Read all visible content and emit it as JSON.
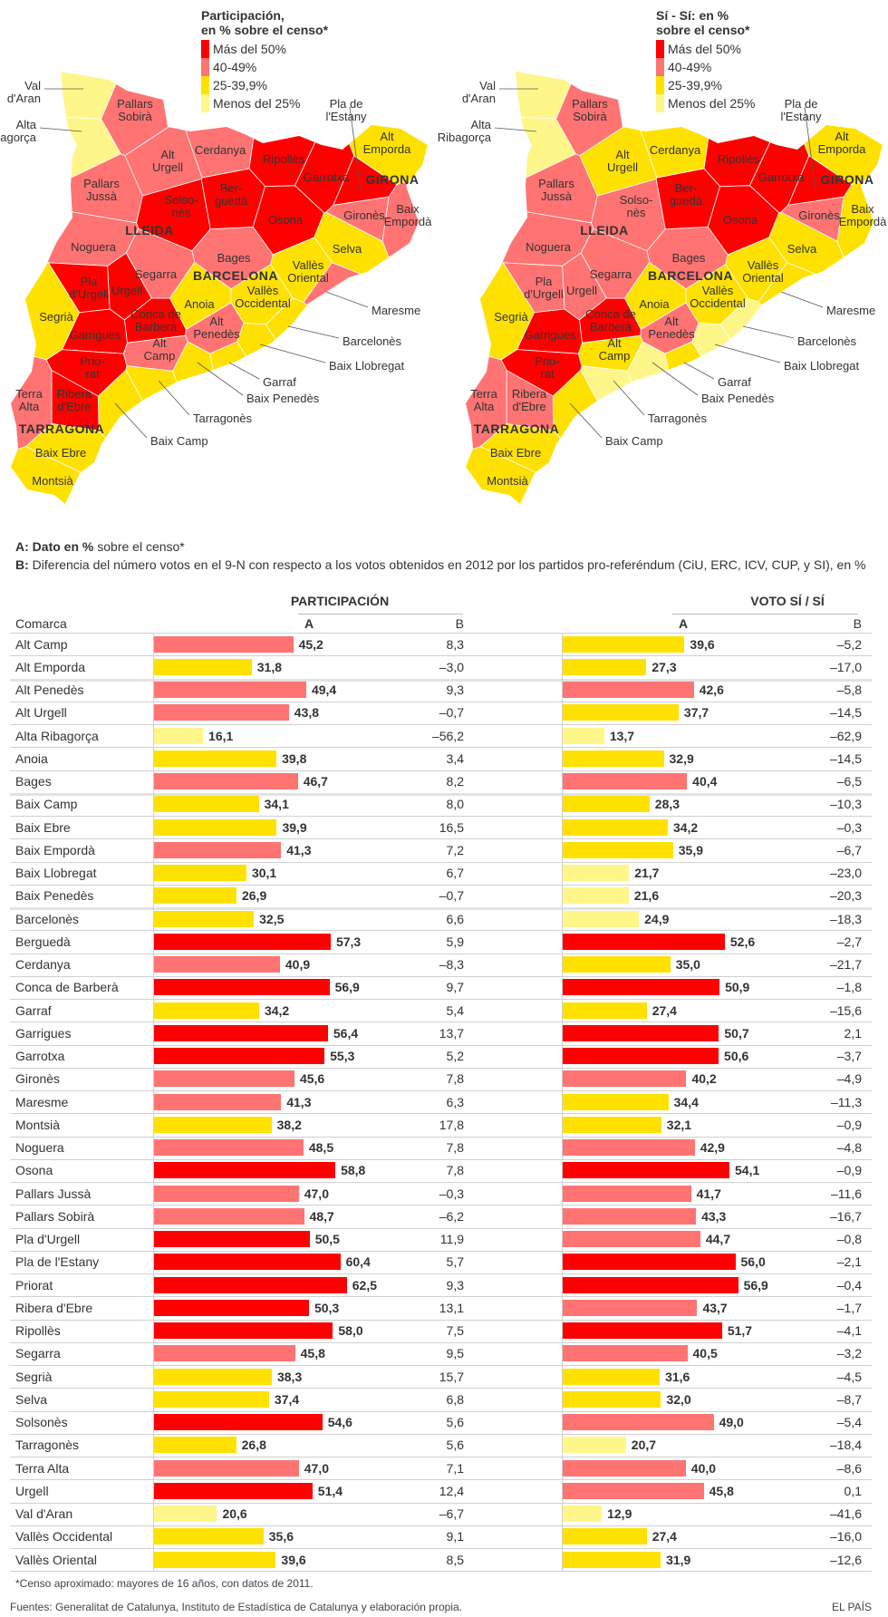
{
  "colors": {
    "more_50": "#ff0000",
    "from_40_49": "#ff7373",
    "from_25_39": "#ffe100",
    "less_25": "#fff68a"
  },
  "legend_labels": [
    "Más del 50%",
    "40-49%",
    "25-39,9%",
    "Menos del 25%"
  ],
  "maps": [
    {
      "title_line1": "Participación,",
      "title_line2": "en % sobre el censo*",
      "value_field": "part_a"
    },
    {
      "title_line1": "Sí - Sí: en %",
      "title_line2": "sobre el censo*",
      "value_field": "si_a"
    }
  ],
  "provinces": [
    "LLEIDA",
    "GIRONA",
    "BARCELONA",
    "TARRAGONA"
  ],
  "notes": {
    "a_key": "A:",
    "a_bold": "Dato en %",
    "a_rest": " sobre el censo*",
    "b_key": "B:",
    "b_text": "Diferencia del número votos en el 9-N con respecto a los votos obtenidos en 2012 por los partidos pro-referéndum (CiU, ERC, ICV, CUP, y SI), en %"
  },
  "table": {
    "section_participacion": "PARTICIPACIÓN",
    "section_voto": "VOTO SÍ / SÍ",
    "col_comarca": "Comarca",
    "col_a": "A",
    "col_b": "B"
  },
  "chart_data": {
    "type": "bar",
    "series": [
      {
        "name": "PARTICIPACIÓN A",
        "field": "part_a"
      },
      {
        "name": "PARTICIPACIÓN B",
        "field": "part_b"
      },
      {
        "name": "VOTO SÍ / SÍ A",
        "field": "si_a"
      },
      {
        "name": "VOTO SÍ / SÍ B",
        "field": "si_b"
      }
    ],
    "color_thresholds": [
      50,
      40,
      25
    ],
    "rows": [
      {
        "name": "Alt Camp",
        "part_a": "45,2",
        "part_b": "8,3",
        "si_a": "39,6",
        "si_b": "–5,2"
      },
      {
        "name": "Alt Emporda",
        "part_a": "31,8",
        "part_b": "–3,0",
        "si_a": "27,3",
        "si_b": "–17,0"
      },
      {
        "name": "Alt Penedès",
        "part_a": "49,4",
        "part_b": "9,3",
        "si_a": "42,6",
        "si_b": "–5,8"
      },
      {
        "name": "Alt Urgell",
        "part_a": "43,8",
        "part_b": "–0,7",
        "si_a": "37,7",
        "si_b": "–14,5"
      },
      {
        "name": "Alta Ribagorça",
        "part_a": "16,1",
        "part_b": "–56,2",
        "si_a": "13,7",
        "si_b": "–62,9"
      },
      {
        "name": "Anoia",
        "part_a": "39,8",
        "part_b": "3,4",
        "si_a": "32,9",
        "si_b": "–14,5"
      },
      {
        "name": "Bages",
        "part_a": "46,7",
        "part_b": "8,2",
        "si_a": "40,4",
        "si_b": "–6,5"
      },
      {
        "name": "Baix Camp",
        "part_a": "34,1",
        "part_b": "8,0",
        "si_a": "28,3",
        "si_b": "–10,3"
      },
      {
        "name": "Baix Ebre",
        "part_a": "39,9",
        "part_b": "16,5",
        "si_a": "34,2",
        "si_b": "–0,3"
      },
      {
        "name": "Baix Empordà",
        "part_a": "41,3",
        "part_b": "7,2",
        "si_a": "35,9",
        "si_b": "–6,7"
      },
      {
        "name": "Baix Llobregat",
        "part_a": "30,1",
        "part_b": "6,7",
        "si_a": "21,7",
        "si_b": "–23,0"
      },
      {
        "name": "Baix Penedès",
        "part_a": "26,9",
        "part_b": "–0,7",
        "si_a": "21,6",
        "si_b": "–20,3"
      },
      {
        "name": "Barcelonès",
        "part_a": "32,5",
        "part_b": "6,6",
        "si_a": "24,9",
        "si_b": "–18,3"
      },
      {
        "name": "Berguedà",
        "part_a": "57,3",
        "part_b": "5,9",
        "si_a": "52,6",
        "si_b": "–2,7"
      },
      {
        "name": "Cerdanya",
        "part_a": "40,9",
        "part_b": "–8,3",
        "si_a": "35,0",
        "si_b": "–21,7"
      },
      {
        "name": "Conca de Barberà",
        "part_a": "56,9",
        "part_b": "9,7",
        "si_a": "50,9",
        "si_b": "–1,8"
      },
      {
        "name": "Garraf",
        "part_a": "34,2",
        "part_b": "5,4",
        "si_a": "27,4",
        "si_b": "–15,6"
      },
      {
        "name": "Garrigues",
        "part_a": "56,4",
        "part_b": "13,7",
        "si_a": "50,7",
        "si_b": "2,1"
      },
      {
        "name": "Garrotxa",
        "part_a": "55,3",
        "part_b": "5,2",
        "si_a": "50,6",
        "si_b": "–3,7"
      },
      {
        "name": "Gironès",
        "part_a": "45,6",
        "part_b": "7,8",
        "si_a": "40,2",
        "si_b": "–4,9"
      },
      {
        "name": "Maresme",
        "part_a": "41,3",
        "part_b": "6,3",
        "si_a": "34,4",
        "si_b": "–11,3"
      },
      {
        "name": "Montsià",
        "part_a": "38,2",
        "part_b": "17,8",
        "si_a": "32,1",
        "si_b": "–0,9"
      },
      {
        "name": "Noguera",
        "part_a": "48,5",
        "part_b": "7,8",
        "si_a": "42,9",
        "si_b": "–4,8"
      },
      {
        "name": "Osona",
        "part_a": "58,8",
        "part_b": "7,8",
        "si_a": "54,1",
        "si_b": "–0,9"
      },
      {
        "name": "Pallars Jussà",
        "part_a": "47,0",
        "part_b": "–0,3",
        "si_a": "41,7",
        "si_b": "–11,6"
      },
      {
        "name": "Pallars Sobirà",
        "part_a": "48,7",
        "part_b": "–6,2",
        "si_a": "43,3",
        "si_b": "–16,7"
      },
      {
        "name": "Pla d'Urgell",
        "part_a": "50,5",
        "part_b": "11,9",
        "si_a": "44,7",
        "si_b": "–0,8"
      },
      {
        "name": "Pla de l'Estany",
        "part_a": "60,4",
        "part_b": "5,7",
        "si_a": "56,0",
        "si_b": "–2,1"
      },
      {
        "name": "Priorat",
        "part_a": "62,5",
        "part_b": "9,3",
        "si_a": "56,9",
        "si_b": "–0,4"
      },
      {
        "name": "Ribera d'Ebre",
        "part_a": "50,3",
        "part_b": "13,1",
        "si_a": "43,7",
        "si_b": "–1,7"
      },
      {
        "name": "Ripollès",
        "part_a": "58,0",
        "part_b": "7,5",
        "si_a": "51,7",
        "si_b": "–4,1"
      },
      {
        "name": "Segarra",
        "part_a": "45,8",
        "part_b": "9,5",
        "si_a": "40,5",
        "si_b": "–3,2"
      },
      {
        "name": "Segrià",
        "part_a": "38,3",
        "part_b": "15,7",
        "si_a": "31,6",
        "si_b": "–4,5"
      },
      {
        "name": "Selva",
        "part_a": "37,4",
        "part_b": "6,8",
        "si_a": "32,0",
        "si_b": "–8,7"
      },
      {
        "name": "Solsonès",
        "part_a": "54,6",
        "part_b": "5,6",
        "si_a": "49,0",
        "si_b": "–5,4"
      },
      {
        "name": "Tarragonès",
        "part_a": "26,8",
        "part_b": "5,6",
        "si_a": "20,7",
        "si_b": "–18,4"
      },
      {
        "name": "Terra Alta",
        "part_a": "47,0",
        "part_b": "7,1",
        "si_a": "40,0",
        "si_b": "–8,6"
      },
      {
        "name": "Urgell",
        "part_a": "51,4",
        "part_b": "12,4",
        "si_a": "45,8",
        "si_b": "0,1"
      },
      {
        "name": "Val d'Aran",
        "part_a": "20,6",
        "part_b": "–6,7",
        "si_a": "12,9",
        "si_b": "–41,6"
      },
      {
        "name": "Vallès Occidental",
        "part_a": "35,6",
        "part_b": "9,1",
        "si_a": "27,4",
        "si_b": "–16,0"
      },
      {
        "name": "Vallès Oriental",
        "part_a": "39,6",
        "part_b": "8,5",
        "si_a": "31,9",
        "si_b": "–12,6"
      }
    ]
  },
  "footer": {
    "footnote": "*Censo aproximado: mayores de 16 años, con datos de 2011.",
    "sources": "Fuentes: Generalitat de Catalunya, Instituto de Estadística de Catalunya y elaboración propia.",
    "brand": "EL PAÍS"
  }
}
